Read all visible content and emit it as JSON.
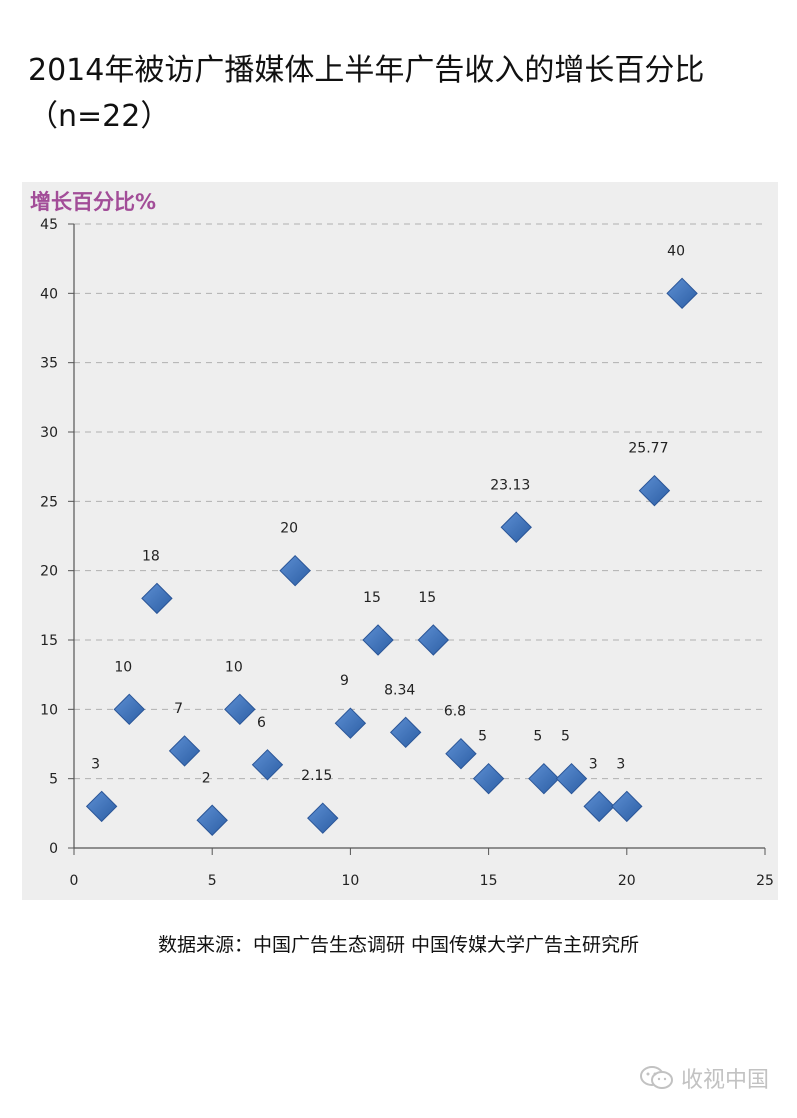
{
  "title": "2014年被访广播媒体上半年广告收入的增长百分比（n=22）",
  "source": "数据来源：中国广告生态调研 中国传媒大学广告主研究所",
  "watermark": "收视中国",
  "watermark_icon": "wechat-icon",
  "colors": {
    "marker": "#3a6db5",
    "marker_edge": "#2a5597",
    "ylabel": "#a24d98",
    "background": "#eeeeee",
    "grid": "#b0b0b0"
  },
  "chart_data": {
    "type": "scatter",
    "title": "2014年被访广播媒体上半年广告收入的增长百分比（n=22）",
    "ylabel": "增长百分比%",
    "xlabel": "",
    "xlim": [
      0,
      25
    ],
    "ylim": [
      0,
      45
    ],
    "xticks": [
      0,
      5,
      10,
      15,
      20,
      25
    ],
    "yticks": [
      0,
      5,
      10,
      15,
      20,
      25,
      30,
      35,
      40,
      45
    ],
    "grid": "horizontal dashed",
    "legend": "none",
    "marker": "diamond",
    "points": [
      {
        "x": 1,
        "y": 3,
        "label": "3"
      },
      {
        "x": 2,
        "y": 10,
        "label": "10"
      },
      {
        "x": 3,
        "y": 18,
        "label": "18"
      },
      {
        "x": 4,
        "y": 7,
        "label": "7"
      },
      {
        "x": 5,
        "y": 2,
        "label": "2"
      },
      {
        "x": 6,
        "y": 10,
        "label": "10"
      },
      {
        "x": 7,
        "y": 6,
        "label": "6"
      },
      {
        "x": 8,
        "y": 20,
        "label": "20"
      },
      {
        "x": 9,
        "y": 2.15,
        "label": "2.15"
      },
      {
        "x": 10,
        "y": 9,
        "label": "9"
      },
      {
        "x": 11,
        "y": 15,
        "label": "15"
      },
      {
        "x": 12,
        "y": 8.34,
        "label": "8.34"
      },
      {
        "x": 13,
        "y": 15,
        "label": "15"
      },
      {
        "x": 14,
        "y": 6.8,
        "label": "6.8"
      },
      {
        "x": 15,
        "y": 5,
        "label": "5"
      },
      {
        "x": 16,
        "y": 23.13,
        "label": "23.13"
      },
      {
        "x": 17,
        "y": 5,
        "label": "5"
      },
      {
        "x": 18,
        "y": 5,
        "label": "5"
      },
      {
        "x": 19,
        "y": 3,
        "label": "3"
      },
      {
        "x": 20,
        "y": 3,
        "label": "3"
      },
      {
        "x": 21,
        "y": 25.77,
        "label": "25.77"
      },
      {
        "x": 22,
        "y": 40,
        "label": "40"
      }
    ]
  }
}
